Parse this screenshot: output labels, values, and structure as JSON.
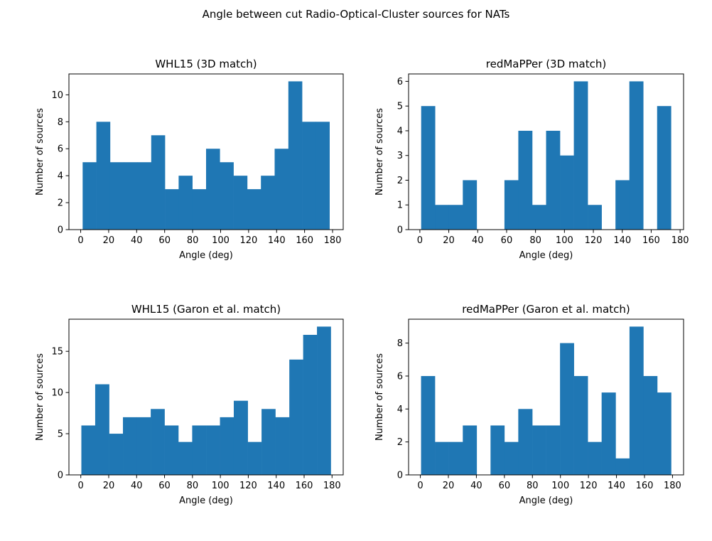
{
  "figure": {
    "suptitle": "Angle between cut Radio-Optical-Cluster sources for NATs"
  },
  "chart_data": [
    {
      "type": "bar",
      "title": "WHL15 (3D match)",
      "xlabel": "Angle (deg)",
      "ylabel": "Number of sources",
      "bin_edges": [
        1.4,
        11.2,
        21.0,
        30.8,
        40.6,
        50.4,
        60.2,
        70.0,
        79.8,
        89.6,
        99.4,
        109.2,
        119.0,
        128.8,
        138.6,
        148.4,
        158.2,
        168.0,
        177.8
      ],
      "values": [
        5,
        8,
        5,
        5,
        5,
        7,
        3,
        4,
        3,
        6,
        5,
        4,
        3,
        4,
        6,
        11,
        8,
        8
      ],
      "xlim": [
        -8.4,
        187.6
      ],
      "ylim": [
        0,
        11.55
      ],
      "xticks": [
        0,
        20,
        40,
        60,
        80,
        100,
        120,
        140,
        160,
        180
      ],
      "yticks": [
        0,
        2,
        4,
        6,
        8,
        10
      ],
      "color": "#1f77b4"
    },
    {
      "type": "bar",
      "title": "redMaPPer (3D match)",
      "xlabel": "Angle (deg)",
      "ylabel": "Number of sources",
      "bin_edges": [
        0.9,
        10.5,
        20.1,
        29.7,
        39.3,
        48.9,
        58.5,
        68.1,
        77.7,
        87.3,
        96.9,
        106.5,
        116.1,
        125.7,
        135.3,
        144.9,
        154.5,
        164.1,
        173.7
      ],
      "values": [
        5,
        1,
        1,
        2,
        0,
        0,
        2,
        4,
        1,
        4,
        3,
        6,
        1,
        0,
        2,
        6,
        0,
        5
      ],
      "xlim": [
        -7.8,
        182.4
      ],
      "ylim": [
        0,
        6.3
      ],
      "xticks": [
        0,
        20,
        40,
        60,
        80,
        100,
        120,
        140,
        160,
        180
      ],
      "yticks": [
        0,
        1,
        2,
        3,
        4,
        5,
        6
      ],
      "color": "#1f77b4"
    },
    {
      "type": "bar",
      "title": "WHL15 (Garon et al. match)",
      "xlabel": "Angle (deg)",
      "ylabel": "Number of sources",
      "bin_edges": [
        0.4,
        10.3,
        20.3,
        30.2,
        40.1,
        50.1,
        60.0,
        69.9,
        79.8,
        89.8,
        99.7,
        109.6,
        119.6,
        129.5,
        139.4,
        149.4,
        159.3,
        169.2,
        179.1
      ],
      "values": [
        6,
        11,
        5,
        7,
        7,
        8,
        6,
        4,
        6,
        6,
        7,
        9,
        4,
        8,
        7,
        14,
        17,
        18
      ],
      "xlim": [
        -8.5,
        188.0
      ],
      "ylim": [
        0,
        18.9
      ],
      "xticks": [
        0,
        20,
        40,
        60,
        80,
        100,
        120,
        140,
        160,
        180
      ],
      "yticks": [
        0,
        5,
        10,
        15
      ],
      "color": "#1f77b4"
    },
    {
      "type": "bar",
      "title": "redMaPPer (Garon et al. match)",
      "xlabel": "Angle (deg)",
      "ylabel": "Number of sources",
      "bin_edges": [
        0.5,
        10.4,
        20.3,
        30.3,
        40.2,
        50.1,
        60.0,
        69.9,
        79.9,
        89.8,
        99.7,
        109.6,
        119.5,
        129.4,
        139.4,
        149.3,
        159.2,
        169.1,
        179.0
      ],
      "values": [
        6,
        2,
        2,
        3,
        0,
        3,
        2,
        4,
        3,
        3,
        8,
        6,
        2,
        5,
        1,
        9,
        6,
        5
      ],
      "xlim": [
        -8.4,
        187.9
      ],
      "ylim": [
        0,
        9.45
      ],
      "xticks": [
        0,
        20,
        40,
        60,
        80,
        100,
        120,
        140,
        160,
        180
      ],
      "yticks": [
        0,
        2,
        4,
        6,
        8
      ],
      "color": "#1f77b4"
    }
  ]
}
